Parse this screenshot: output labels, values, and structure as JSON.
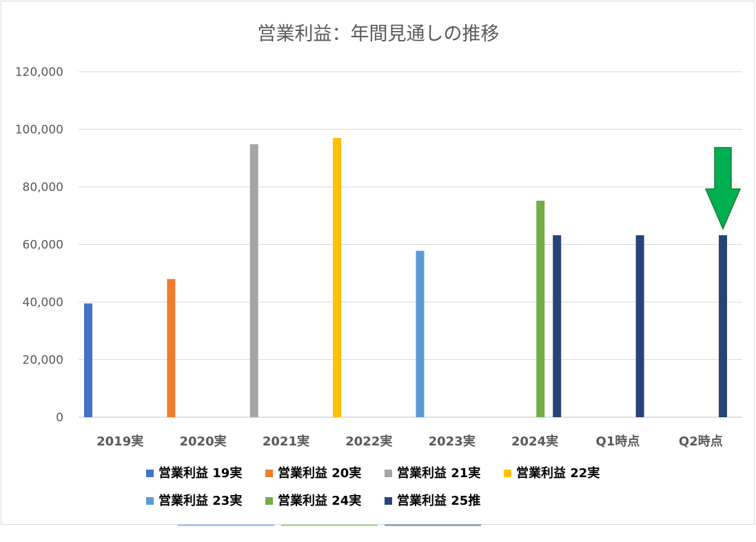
{
  "chart_data": {
    "type": "bar",
    "title": "営業利益：年間見通しの推移",
    "categories": [
      "2019実",
      "2020実",
      "2021実",
      "2022実",
      "2023実",
      "2024実",
      "Q1時点",
      "Q2時点"
    ],
    "ylim": [
      0,
      120000
    ],
    "yticks": [
      "0",
      "20,000",
      "40,000",
      "60,000",
      "80,000",
      "100,000",
      "120,000"
    ],
    "grid": true,
    "legend_position": "bottom",
    "series": [
      {
        "name": "営業利益 19実",
        "color": "#4472C4",
        "values": [
          39500,
          null,
          null,
          null,
          null,
          null,
          null,
          null
        ]
      },
      {
        "name": "営業利益 20実",
        "color": "#ED7D31",
        "values": [
          null,
          48000,
          null,
          null,
          null,
          null,
          null,
          null
        ]
      },
      {
        "name": "営業利益 21実",
        "color": "#A5A5A5",
        "values": [
          null,
          null,
          94800,
          null,
          null,
          null,
          null,
          null
        ]
      },
      {
        "name": "営業利益 22実",
        "color": "#FFC000",
        "values": [
          null,
          null,
          null,
          97000,
          null,
          null,
          null,
          null
        ]
      },
      {
        "name": "営業利益 23実",
        "color": "#5B9BD5",
        "values": [
          null,
          null,
          null,
          null,
          57800,
          null,
          null,
          null
        ]
      },
      {
        "name": "営業利益 24実",
        "color": "#70AD47",
        "values": [
          null,
          null,
          null,
          null,
          null,
          75200,
          null,
          null
        ]
      },
      {
        "name": "営業利益 25推",
        "color": "#264478",
        "values": [
          null,
          null,
          null,
          null,
          null,
          63200,
          63200,
          63200
        ]
      }
    ],
    "annotation": {
      "type": "arrow",
      "color": "#00B050",
      "points_to_category": "Q2時点"
    }
  }
}
